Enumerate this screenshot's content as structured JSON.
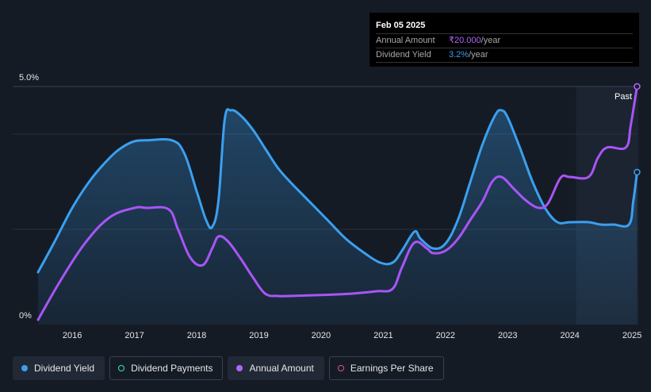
{
  "tooltip": {
    "date": "Feb 05 2025",
    "annual_amount_label": "Annual Amount",
    "annual_amount_value": "₹20.000",
    "annual_amount_unit": "/year",
    "dividend_yield_label": "Dividend Yield",
    "dividend_yield_value": "3.2%",
    "dividend_yield_unit": "/year"
  },
  "past_label": "Past",
  "legend": [
    {
      "label": "Dividend Yield",
      "color": "#3aa0f0",
      "style": "filled",
      "active": true
    },
    {
      "label": "Dividend Payments",
      "color": "#3ee0c0",
      "style": "hollow",
      "active": false
    },
    {
      "label": "Annual Amount",
      "color": "#b066ff",
      "style": "filled",
      "active": true
    },
    {
      "label": "Earnings Per Share",
      "color": "#e0508a",
      "style": "hollow",
      "active": false
    }
  ],
  "colors": {
    "background": "#151b25",
    "yield_line": "#3aa0f0",
    "amount_line": "#a855f7",
    "grid": "#2e3642",
    "past_band": "#1b2a3a"
  },
  "chart_data": {
    "type": "line",
    "x_tick_labels": [
      "2016",
      "2017",
      "2018",
      "2019",
      "2020",
      "2021",
      "2022",
      "2023",
      "2024",
      "2025"
    ],
    "y_tick_labels": [
      "5.0%",
      "0%"
    ],
    "ylim": [
      0,
      5.0
    ],
    "xlim": [
      2015.45,
      2025.1
    ],
    "past_start": 2024.1,
    "grid": true,
    "series": [
      {
        "name": "Dividend Yield",
        "x": [
          2015.45,
          2015.7,
          2016.0,
          2016.3,
          2016.6,
          2016.8,
          2017.0,
          2017.2,
          2017.6,
          2017.8,
          2018.0,
          2018.15,
          2018.25,
          2018.35,
          2018.45,
          2018.55,
          2018.7,
          2018.9,
          2019.1,
          2019.3,
          2019.5,
          2019.8,
          2020.1,
          2020.4,
          2020.7,
          2020.95,
          2021.15,
          2021.3,
          2021.5,
          2021.6,
          2021.8,
          2022.0,
          2022.2,
          2022.4,
          2022.6,
          2022.8,
          2022.9,
          2023.0,
          2023.2,
          2023.4,
          2023.6,
          2023.8,
          2024.0,
          2024.3,
          2024.5,
          2024.7,
          2024.95,
          2025.02,
          2025.08
        ],
        "values": [
          1.1,
          1.7,
          2.45,
          3.05,
          3.5,
          3.72,
          3.85,
          3.87,
          3.87,
          3.6,
          2.8,
          2.2,
          2.05,
          2.6,
          4.3,
          4.5,
          4.4,
          4.1,
          3.7,
          3.3,
          3.0,
          2.6,
          2.2,
          1.8,
          1.5,
          1.3,
          1.3,
          1.55,
          1.95,
          1.8,
          1.6,
          1.7,
          2.2,
          3.0,
          3.8,
          4.4,
          4.5,
          4.35,
          3.7,
          3.0,
          2.45,
          2.15,
          2.15,
          2.15,
          2.1,
          2.1,
          2.1,
          2.6,
          3.2
        ]
      },
      {
        "name": "Annual Amount",
        "x": [
          2015.45,
          2015.8,
          2016.2,
          2016.6,
          2017.0,
          2017.2,
          2017.55,
          2017.7,
          2017.9,
          2018.1,
          2018.25,
          2018.35,
          2018.5,
          2018.7,
          2018.9,
          2019.1,
          2019.3,
          2019.5,
          2020.0,
          2020.5,
          2020.9,
          2021.15,
          2021.3,
          2021.5,
          2021.7,
          2021.8,
          2022.0,
          2022.2,
          2022.4,
          2022.6,
          2022.75,
          2022.9,
          2023.1,
          2023.3,
          2023.5,
          2023.65,
          2023.85,
          2024.0,
          2024.3,
          2024.45,
          2024.6,
          2024.9,
          2024.98,
          2025.08
        ],
        "values": [
          0.1,
          0.9,
          1.7,
          2.25,
          2.45,
          2.45,
          2.42,
          2.0,
          1.4,
          1.25,
          1.6,
          1.85,
          1.75,
          1.4,
          1.0,
          0.65,
          0.6,
          0.6,
          0.62,
          0.65,
          0.7,
          0.75,
          1.2,
          1.72,
          1.6,
          1.5,
          1.55,
          1.8,
          2.2,
          2.6,
          3.0,
          3.1,
          2.85,
          2.6,
          2.45,
          2.55,
          3.08,
          3.1,
          3.1,
          3.5,
          3.72,
          3.72,
          4.2,
          5.0
        ]
      }
    ]
  }
}
